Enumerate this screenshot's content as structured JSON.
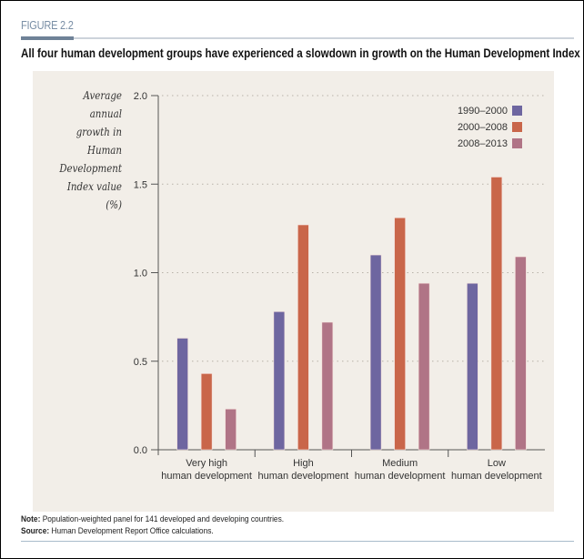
{
  "figure_label": "FIGURE 2.2",
  "title": "All four human development groups have experienced a slowdown in growth on the Human Development Index",
  "chart_data": {
    "type": "bar",
    "title": "All four human development groups have experienced a slowdown in growth on the Human Development Index",
    "ylabel_lines": [
      "Average annual",
      "growth in Human",
      "Development",
      "Index value",
      "(%)"
    ],
    "xlabel": "",
    "ylim": [
      0,
      2.0
    ],
    "yticks": [
      0.0,
      0.5,
      1.0,
      1.5,
      2.0
    ],
    "ytick_labels": [
      "0.0",
      "0.5",
      "1.0",
      "1.5",
      "2.0"
    ],
    "grid": "horizontal-dotted",
    "legend_position": "top-right",
    "categories": [
      [
        "Very high",
        "human development"
      ],
      [
        "High",
        "human development"
      ],
      [
        "Medium",
        "human development"
      ],
      [
        "Low",
        "human development"
      ]
    ],
    "series": [
      {
        "name": "1990–2000",
        "color": "#6e66a0",
        "values": [
          0.63,
          0.78,
          1.1,
          0.94
        ]
      },
      {
        "name": "2000–2008",
        "color": "#c9664a",
        "values": [
          0.43,
          1.27,
          1.31,
          1.54
        ]
      },
      {
        "name": "2008–2013",
        "color": "#b07486",
        "values": [
          0.23,
          0.72,
          0.94,
          1.09
        ]
      }
    ]
  },
  "note_label": "Note:",
  "note_text": " Population-weighted panel for 141 developed and developing countries.",
  "source_label": "Source:",
  "source_text": " Human Development Report Office calculations."
}
